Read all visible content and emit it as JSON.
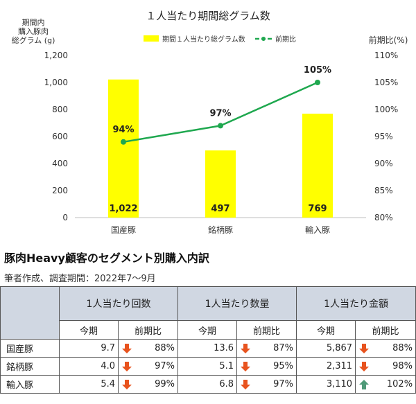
{
  "chart_data": {
    "type": "bar",
    "title": "１人当たり期間総グラム数",
    "ylabel_left": [
      "期間内",
      "購入豚肉",
      "総グラム (g)"
    ],
    "ylabel_right": "前期比(%)",
    "categories": [
      "国産豚",
      "銘柄豚",
      "輸入豚"
    ],
    "series": [
      {
        "name": "期間１人当たり総グラム数",
        "type": "bar",
        "axis": "left",
        "values": [
          1022,
          497,
          769
        ],
        "labels": [
          "1,022",
          "497",
          "769"
        ],
        "color": "#ffff00"
      },
      {
        "name": "前期比",
        "type": "line",
        "axis": "right",
        "values": [
          94,
          97,
          105
        ],
        "labels": [
          "94%",
          "97%",
          "105%"
        ],
        "color": "#1fa84f"
      }
    ],
    "ylim_left": [
      0,
      1200
    ],
    "ylim_right": [
      80,
      110
    ],
    "yticks_left": [
      "0",
      "200",
      "400",
      "600",
      "800",
      "1,000",
      "1,200"
    ],
    "yticks_right": [
      "80%",
      "85%",
      "90%",
      "95%",
      "100%",
      "105%",
      "110%"
    ],
    "legend_position": "top"
  },
  "section": {
    "subtitle": "豚肉Heavy顧客のセグメント別購入内訳",
    "note": "筆者作成、調査期間：2022年7〜9月"
  },
  "table": {
    "groups": [
      "1人当たり回数",
      "1人当たり数量",
      "1人当たり金額"
    ],
    "subheaders": [
      "今期",
      "前期比"
    ],
    "rows": [
      {
        "name": "国産豚",
        "cells": [
          {
            "current": "9.7",
            "change": "88%",
            "trend": "down"
          },
          {
            "current": "13.6",
            "change": "87%",
            "trend": "down"
          },
          {
            "current": "5,867",
            "change": "88%",
            "trend": "down"
          }
        ]
      },
      {
        "name": "銘柄豚",
        "cells": [
          {
            "current": "4.0",
            "change": "97%",
            "trend": "down"
          },
          {
            "current": "5.1",
            "change": "95%",
            "trend": "down"
          },
          {
            "current": "2,311",
            "change": "98%",
            "trend": "down"
          }
        ]
      },
      {
        "name": "輸入豚",
        "cells": [
          {
            "current": "5.4",
            "change": "99%",
            "trend": "down"
          },
          {
            "current": "6.8",
            "change": "97%",
            "trend": "down"
          },
          {
            "current": "3,110",
            "change": "102%",
            "trend": "up"
          }
        ]
      }
    ],
    "colors": {
      "down": "#e8531e",
      "up": "#4f9a78",
      "header": "#d0d7e2"
    }
  }
}
